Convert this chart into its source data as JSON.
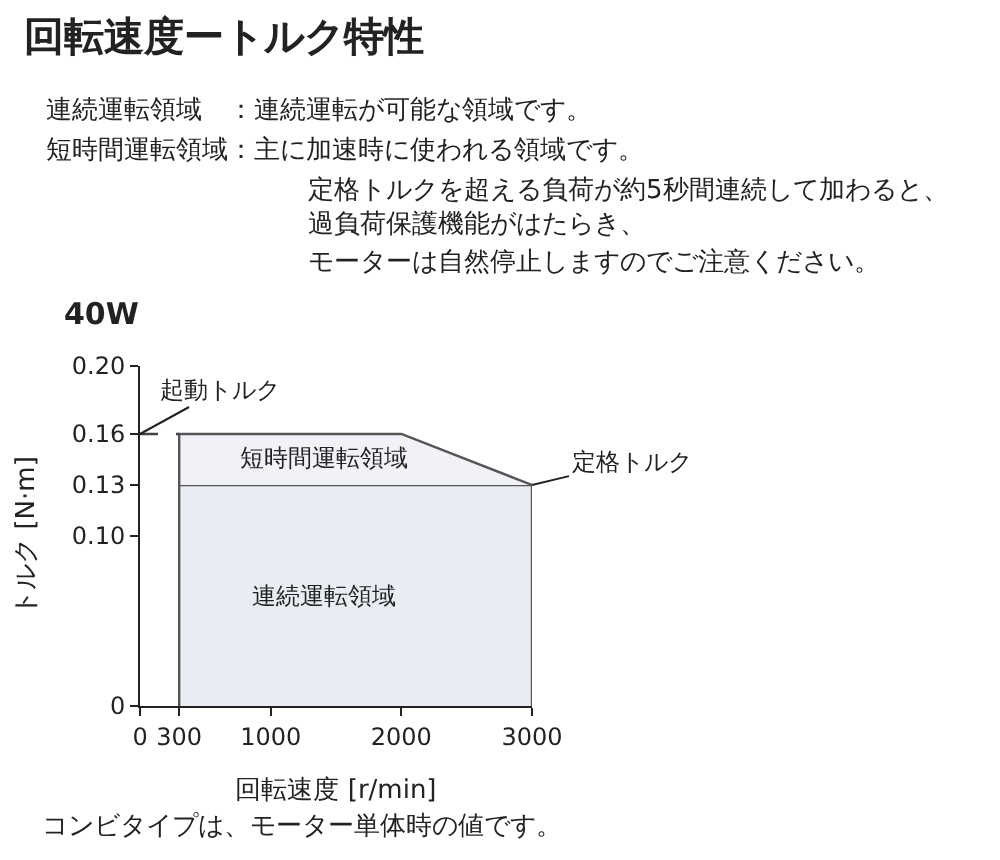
{
  "chart_data": {
    "type": "area",
    "title": "回転速度ートルク特性",
    "xlabel": "回転速度 [r/min]",
    "ylabel": "トルク [N·m]",
    "xlim": [
      0,
      3000
    ],
    "xticks": [
      0,
      300,
      1000,
      2000,
      3000
    ],
    "ylim": [
      0,
      0.2
    ],
    "yticks": [
      0,
      {
        "value": 0.1,
        "label": "0.10"
      },
      0.13,
      0.16,
      {
        "value": 0.2,
        "label": "0.20"
      }
    ],
    "series": [
      {
        "color": "#e8ecf3",
        "x": [
          300,
          300,
          3000,
          3000
        ],
        "values": [
          0,
          0.13,
          0.13,
          0
        ]
      },
      {
        "color": "#f0f2f7",
        "x": [
          300,
          300,
          2000,
          3000
        ],
        "values": [
          0.13,
          0.16,
          0.16,
          0.13
        ]
      },
      {
        "type": "line",
        "color": "#444444",
        "x": [
          0,
          300
        ],
        "values": [
          0.16,
          0.16
        ],
        "line_style": "dashed"
      }
    ],
    "annotations": [
      "連続運転領域　：連続運転が可能な領域です。",
      "短時間運転領域：主に加速時に使われる領域です。",
      "定格トルクを超える負荷が約5秒間連続して加わると、",
      "過負荷保護機能がはたらき、",
      "モーターは自然停止しますのでご注意ください。",
      "40W",
      "コンビタイプは、モーター単体時の値です。",
      {
        "text": "起動トルク",
        "x": 0,
        "y": 0.16
      },
      {
        "text": "定格トルク",
        "x": 3000,
        "y": 0.13
      },
      "短時間運転領域",
      "連続運転領域"
    ]
  }
}
